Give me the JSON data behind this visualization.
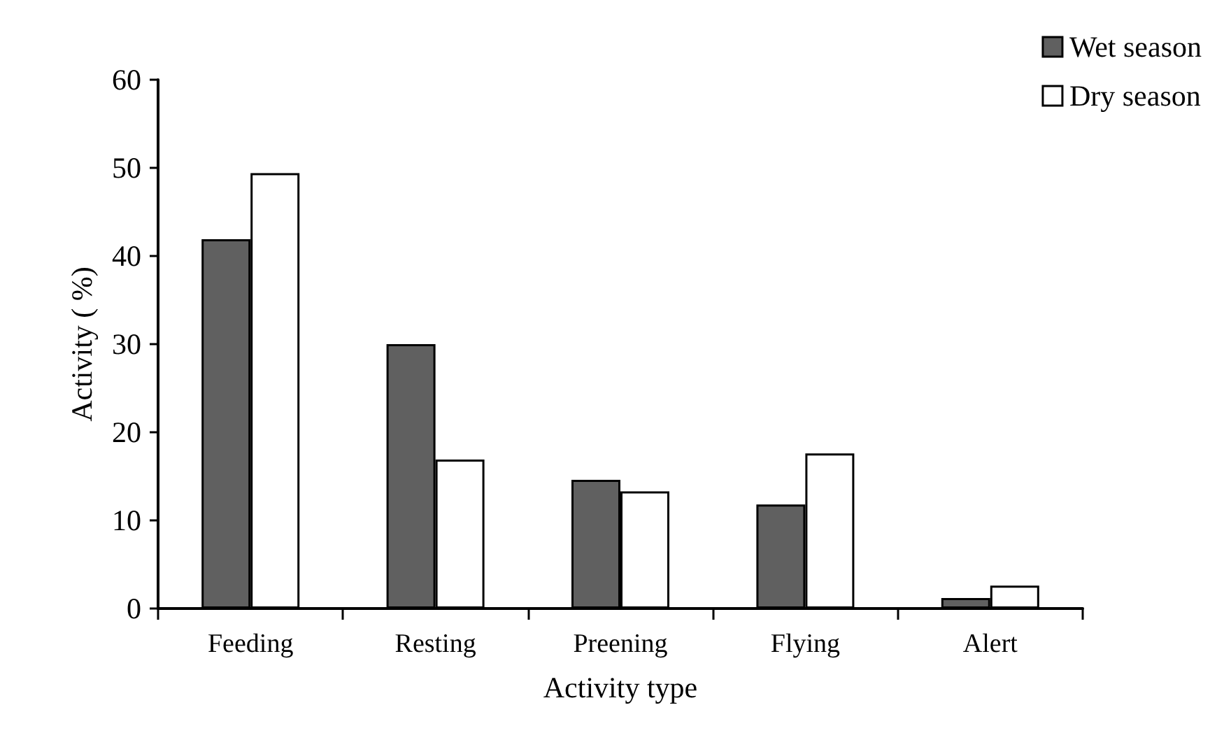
{
  "chart_data": {
    "type": "bar",
    "xlabel": "Activity type",
    "ylabel": "Activity ( %)",
    "categories": [
      "Feeding",
      "Resting",
      "Preening",
      "Flying",
      "Alert"
    ],
    "series": [
      {
        "name": "Wet season",
        "color": "#606060",
        "values": [
          41.9,
          30.0,
          14.6,
          11.8,
          1.2
        ]
      },
      {
        "name": "Dry season",
        "color": "#ffffff",
        "values": [
          49.4,
          16.9,
          13.3,
          17.6,
          2.6
        ]
      }
    ],
    "ylim": [
      0,
      60
    ],
    "yticks": [
      0,
      10,
      20,
      30,
      40,
      50,
      60
    ],
    "grid": false,
    "legend": "top right"
  }
}
